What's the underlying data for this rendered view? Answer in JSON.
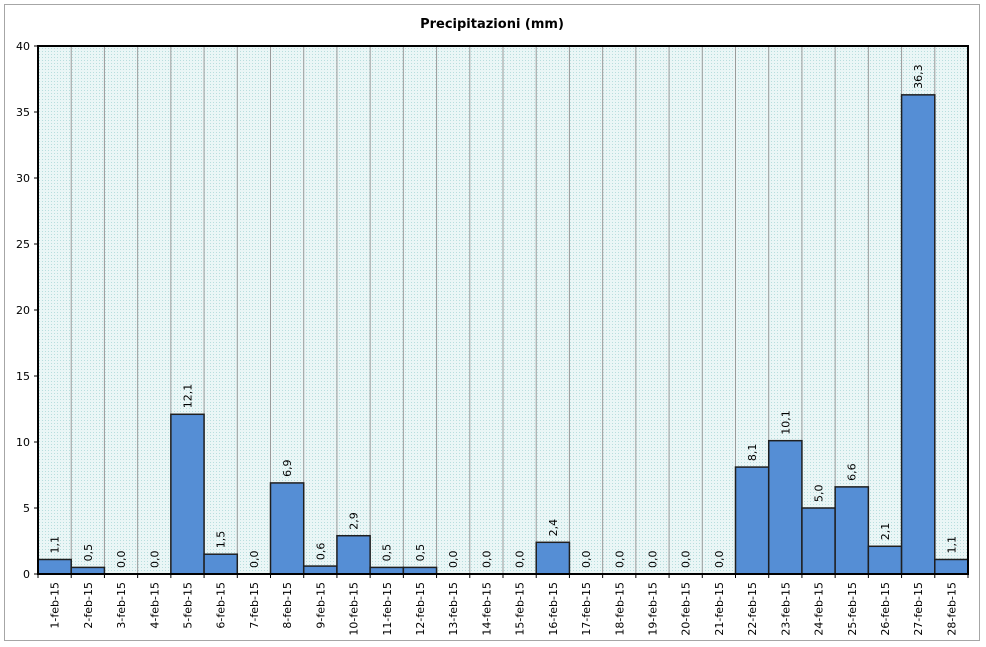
{
  "chart_data": {
    "type": "bar",
    "title": "Precipitazioni (mm)",
    "xlabel": "",
    "ylabel": "",
    "ylim": [
      0,
      40
    ],
    "yticks": [
      0,
      5,
      10,
      15,
      20,
      25,
      30,
      35,
      40
    ],
    "grid": true,
    "legend": "none",
    "categories": [
      "1-feb-15",
      "2-feb-15",
      "3-feb-15",
      "4-feb-15",
      "5-feb-15",
      "6-feb-15",
      "7-feb-15",
      "8-feb-15",
      "9-feb-15",
      "10-feb-15",
      "11-feb-15",
      "12-feb-15",
      "13-feb-15",
      "14-feb-15",
      "15-feb-15",
      "16-feb-15",
      "17-feb-15",
      "18-feb-15",
      "19-feb-15",
      "20-feb-15",
      "21-feb-15",
      "22-feb-15",
      "23-feb-15",
      "24-feb-15",
      "25-feb-15",
      "26-feb-15",
      "27-feb-15",
      "28-feb-15"
    ],
    "values": [
      1.1,
      0.5,
      0.0,
      0.0,
      12.1,
      1.5,
      0.0,
      6.9,
      0.6,
      2.9,
      0.5,
      0.5,
      0.0,
      0.0,
      0.0,
      2.4,
      0.0,
      0.0,
      0.0,
      0.0,
      0.0,
      8.1,
      10.1,
      5.0,
      6.6,
      2.1,
      36.3,
      1.1
    ],
    "data_labels": [
      "1,1",
      "0,5",
      "0,0",
      "0,0",
      "12,1",
      "1,5",
      "0,0",
      "6,9",
      "0,6",
      "2,9",
      "0,5",
      "0,5",
      "0,0",
      "0,0",
      "0,0",
      "2,4",
      "0,0",
      "0,0",
      "0,0",
      "0,0",
      "0,0",
      "8,1",
      "10,1",
      "5,0",
      "6,6",
      "2,1",
      "36,3",
      "1,1"
    ],
    "colors": {
      "bar": "#558ed5",
      "bar_border": "#1f1f1f",
      "plot_background": "#dcf0f0",
      "grid": "#9a9a9a",
      "axis": "#000000"
    }
  }
}
